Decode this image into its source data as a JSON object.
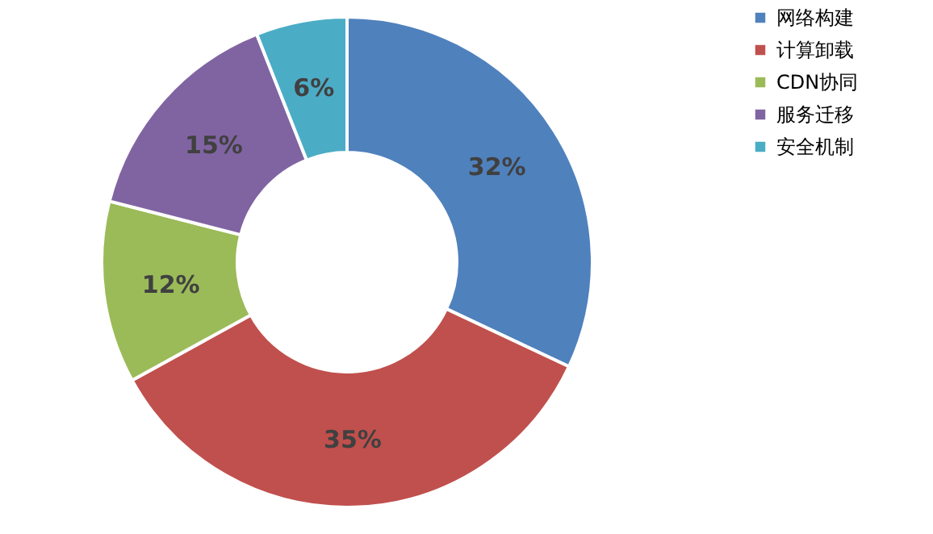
{
  "chart_data": {
    "type": "donut",
    "categories": [
      "网络构建",
      "计算卸载",
      "CDN协同",
      "服务迁移",
      "安全机制"
    ],
    "values": [
      32,
      35,
      12,
      15,
      6
    ],
    "colors": [
      "#4f81bd",
      "#c0504d",
      "#9bbb59",
      "#8064a2",
      "#4bacc6"
    ],
    "value_labels": [
      "32%",
      "35%",
      "12%",
      "15%",
      "6%"
    ],
    "legend": "right"
  }
}
